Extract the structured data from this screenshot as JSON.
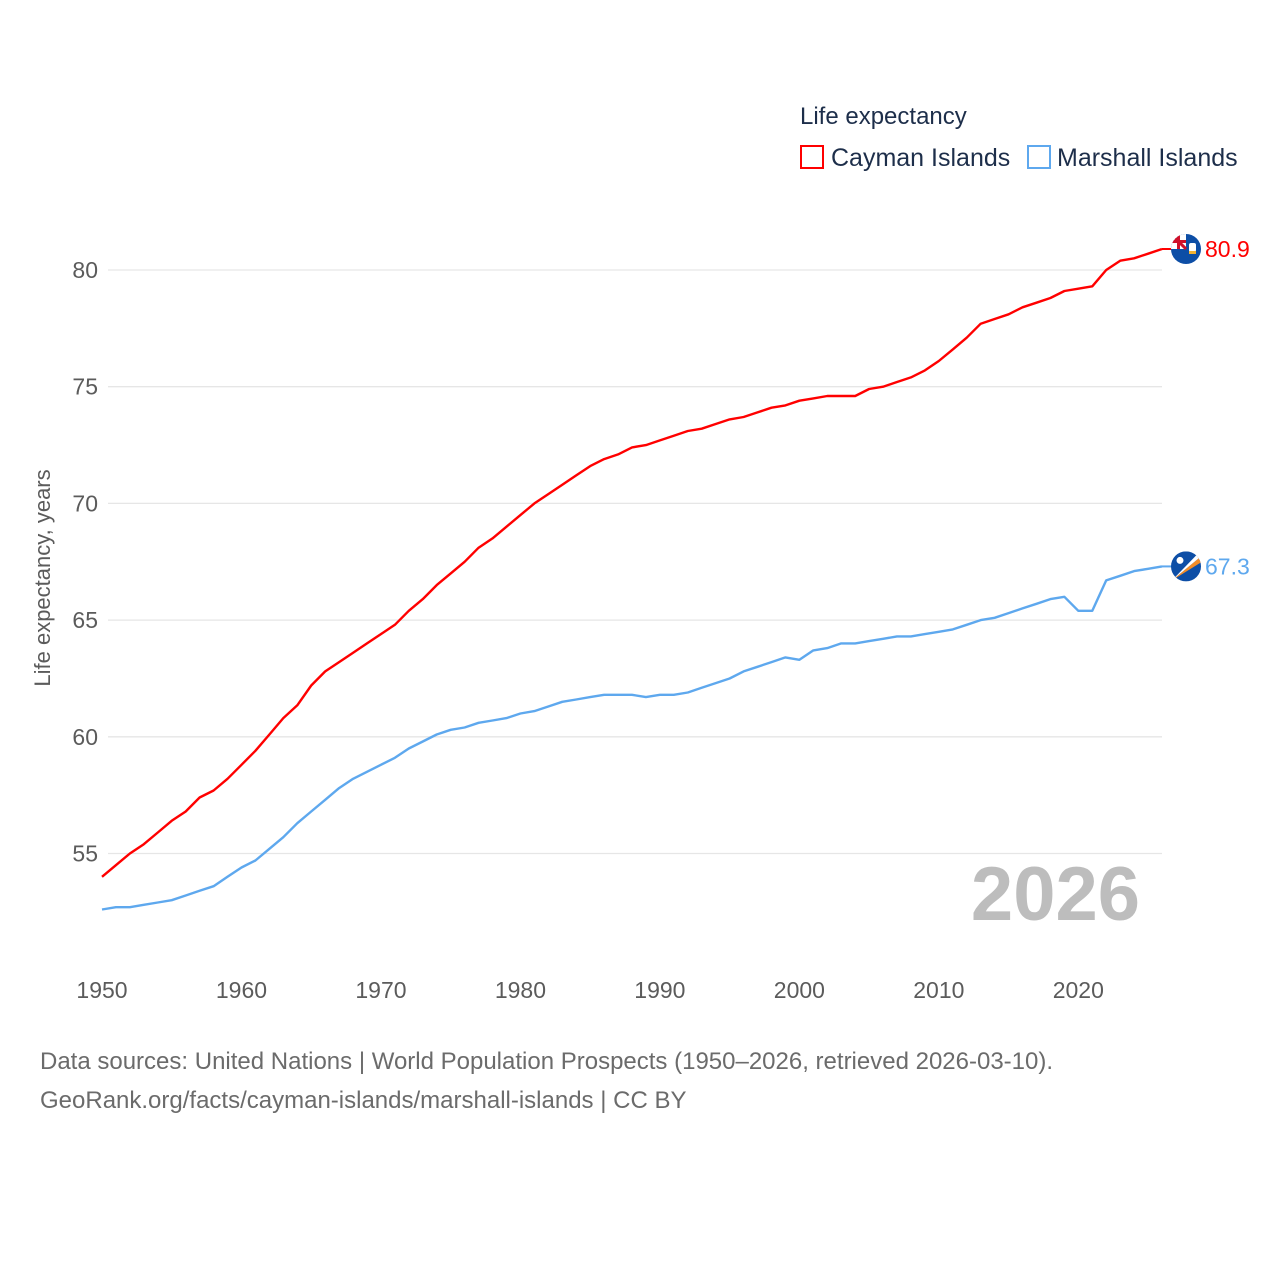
{
  "chart_data": {
    "type": "line",
    "title": "Life expectancy",
    "ylabel": "Life expectancy, years",
    "xlabel": "",
    "xlim": [
      1950,
      2026
    ],
    "ylim": [
      51.5,
      82
    ],
    "x_ticks": [
      "1950",
      "1960",
      "1970",
      "1980",
      "1990",
      "2000",
      "2010",
      "2020"
    ],
    "y_ticks": [
      "55",
      "60",
      "65",
      "70",
      "75",
      "80"
    ],
    "grid": true,
    "legend_placement": "top-right",
    "year_watermark": "2026",
    "x_start": 1950,
    "series": [
      {
        "name": "Cayman Islands",
        "color": "#ff0000",
        "end_label": "80.9",
        "flag_icon": "cayman-islands-flag-icon",
        "values": [
          54.0,
          54.5,
          55.0,
          55.4,
          55.9,
          56.4,
          56.8,
          57.4,
          57.7,
          58.2,
          58.8,
          59.4,
          60.1,
          60.8,
          61.35,
          62.2,
          62.8,
          63.2,
          63.6,
          64.0,
          64.4,
          64.8,
          65.4,
          65.9,
          66.5,
          67.0,
          67.5,
          68.1,
          68.5,
          69.0,
          69.5,
          70.0,
          70.4,
          70.8,
          71.2,
          71.6,
          71.9,
          72.1,
          72.4,
          72.5,
          72.7,
          72.9,
          73.1,
          73.2,
          73.4,
          73.6,
          73.7,
          73.9,
          74.1,
          74.2,
          74.4,
          74.5,
          74.6,
          74.6,
          74.6,
          74.9,
          75.0,
          75.2,
          75.4,
          75.7,
          76.1,
          76.6,
          77.1,
          77.7,
          77.9,
          78.1,
          78.4,
          78.6,
          78.8,
          79.1,
          79.2,
          79.3,
          80.0,
          80.4,
          80.5,
          80.7,
          80.9
        ]
      },
      {
        "name": "Marshall Islands",
        "color": "#5ea8ee",
        "end_label": "67.3",
        "flag_icon": "marshall-islands-flag-icon",
        "values": [
          52.6,
          52.7,
          52.7,
          52.8,
          52.9,
          53.0,
          53.2,
          53.4,
          53.6,
          54.0,
          54.4,
          54.7,
          55.2,
          55.7,
          56.3,
          56.8,
          57.3,
          57.8,
          58.2,
          58.5,
          58.8,
          59.1,
          59.5,
          59.8,
          60.1,
          60.3,
          60.4,
          60.6,
          60.7,
          60.8,
          61.0,
          61.1,
          61.3,
          61.5,
          61.6,
          61.7,
          61.8,
          61.8,
          61.8,
          61.7,
          61.8,
          61.8,
          61.9,
          62.1,
          62.3,
          62.5,
          62.8,
          63.0,
          63.2,
          63.4,
          63.3,
          63.7,
          63.8,
          64.0,
          64.0,
          64.1,
          64.2,
          64.3,
          64.3,
          64.4,
          64.5,
          64.6,
          64.8,
          65.0,
          65.1,
          65.3,
          65.5,
          65.7,
          65.9,
          66.0,
          65.4,
          65.4,
          66.7,
          66.9,
          67.1,
          67.2,
          67.3
        ]
      }
    ]
  },
  "footer": {
    "line1": "Data sources: United Nations | World Population Prospects (1950–2026, retrieved 2026-03-10).",
    "line2": "GeoRank.org/facts/cayman-islands/marshall-islands | CC BY"
  }
}
